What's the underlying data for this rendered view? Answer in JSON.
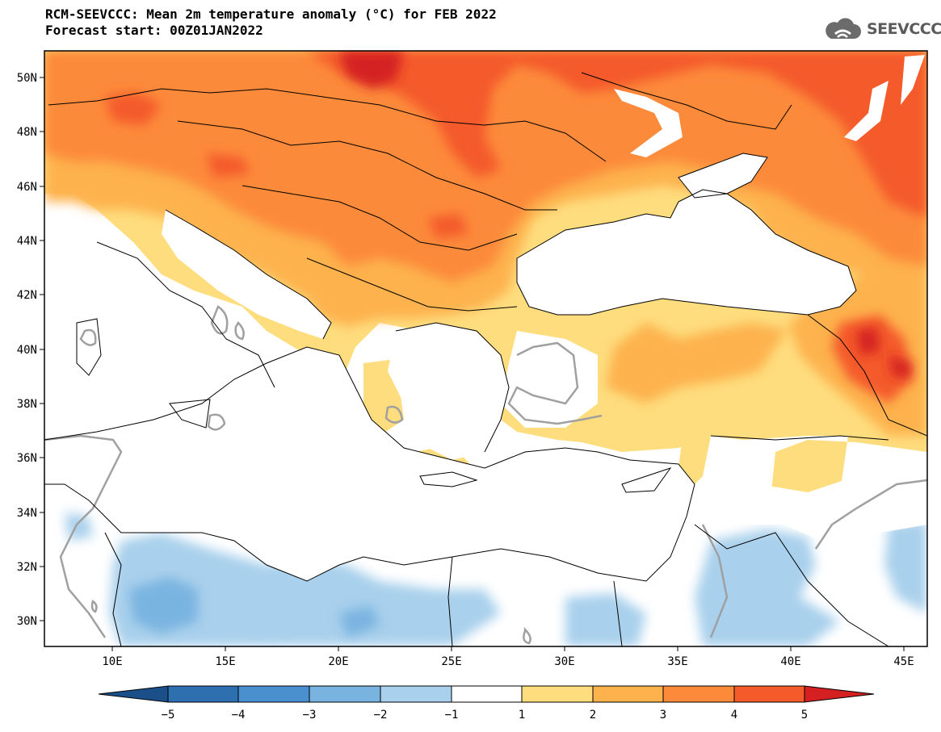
{
  "title": {
    "line1": "RCM-SEEVCCC: Mean 2m temperature anomaly (°C) for FEB 2022",
    "line2": "Forecast start: 00Z01JAN2022"
  },
  "logo": {
    "text": "SEEVCCC",
    "icon": "cloud-icon"
  },
  "map": {
    "lon_range": [
      7,
      46
    ],
    "lat_range": [
      29,
      51
    ],
    "lat_ticks": [
      "50N",
      "48N",
      "46N",
      "44N",
      "42N",
      "40N",
      "38N",
      "36N",
      "34N",
      "32N",
      "30N"
    ],
    "lon_ticks": [
      "10E",
      "15E",
      "20E",
      "25E",
      "30E",
      "35E",
      "40E",
      "45E"
    ],
    "contour_color": "#a0a0a0",
    "coast_color": "#000000"
  },
  "colorbar": {
    "labels": [
      "−5",
      "−4",
      "−3",
      "−2",
      "−1",
      "1",
      "2",
      "3",
      "4",
      "5"
    ],
    "colors": [
      "#1a4f8a",
      "#2e6fb0",
      "#4a90cf",
      "#79b4e0",
      "#a9d0ec",
      "#ffffff",
      "#fedd7e",
      "#fdb24e",
      "#fc8a3a",
      "#f45a2a",
      "#d42020"
    ]
  }
}
